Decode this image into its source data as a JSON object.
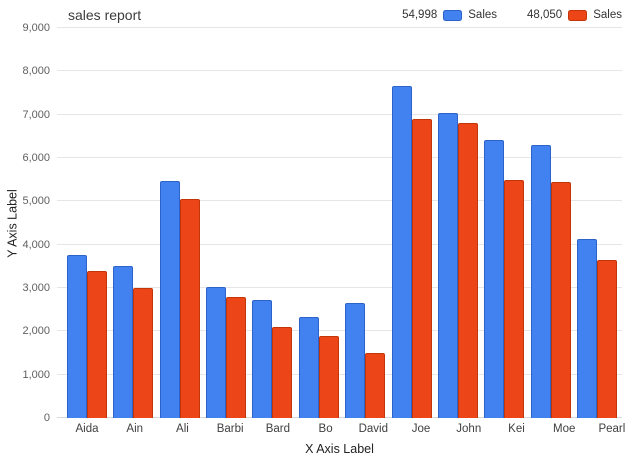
{
  "chart_data": {
    "type": "bar",
    "title": "sales report",
    "xlabel": "X Axis Label",
    "ylabel": "Y Axis Label",
    "ylim": [
      0,
      9000
    ],
    "ytick_step": 1000,
    "grid": true,
    "legend_position": "top-right",
    "categories": [
      "Aida",
      "Ain",
      "Ali",
      "Barbi",
      "Bard",
      "Bo",
      "David",
      "Joe",
      "John",
      "Kei",
      "Moe",
      "Pearl"
    ],
    "series": [
      {
        "name": "Sales",
        "total_label": "54,998",
        "color": "#4182F0",
        "border_color": "#2D63C8",
        "values": [
          3760,
          3500,
          5480,
          3020,
          2720,
          2320,
          2650,
          7660,
          7040,
          6420,
          6300,
          4128
        ]
      },
      {
        "name": "Sales",
        "total_label": "48,050",
        "color": "#EC4618",
        "border_color": "#C33508",
        "values": [
          3400,
          3000,
          5050,
          2800,
          2100,
          1900,
          1500,
          6900,
          6800,
          5500,
          5450,
          3650
        ]
      }
    ]
  }
}
